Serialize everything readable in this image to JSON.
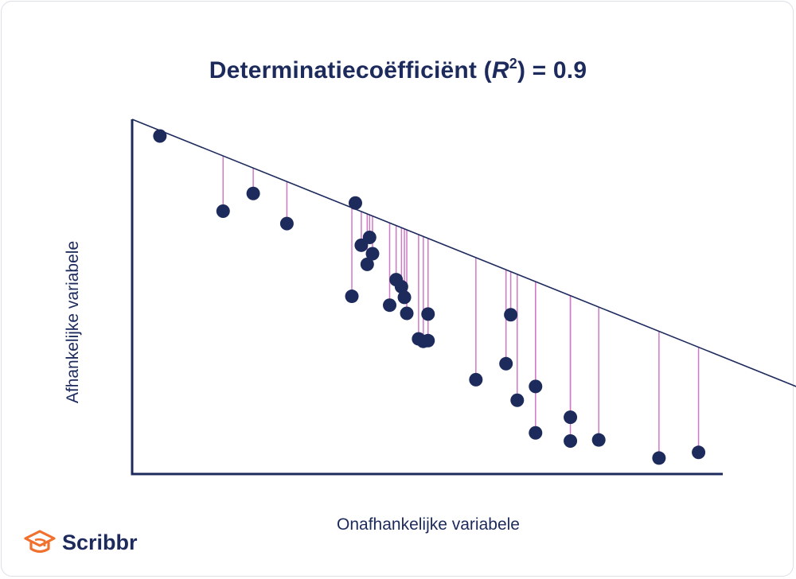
{
  "chart_data": {
    "type": "scatter",
    "title": "Determinatiecoëfficiënt (R²) = 0.9",
    "title_parts": {
      "pre": "Determinatiecoëfficiënt (",
      "r": "R",
      "sup": "2",
      "post": ") = 0.9"
    },
    "xlabel": "Onafhankelijke variabele",
    "ylabel": "Afhankelijke variabele",
    "ticks": false,
    "grid": false,
    "regression_line": {
      "slope": -0.67,
      "intercept": 100
    },
    "show_residuals": true,
    "xlim": [
      0,
      100
    ],
    "ylim": [
      0,
      100
    ],
    "points": [
      {
        "x": 4.7,
        "y": 95.3
      },
      {
        "x": 15.4,
        "y": 74.1
      },
      {
        "x": 20.5,
        "y": 79.1
      },
      {
        "x": 26.2,
        "y": 70.6
      },
      {
        "x": 37.2,
        "y": 50.1
      },
      {
        "x": 37.8,
        "y": 76.4
      },
      {
        "x": 38.8,
        "y": 64.5
      },
      {
        "x": 39.8,
        "y": 59.1
      },
      {
        "x": 40.2,
        "y": 66.7
      },
      {
        "x": 40.7,
        "y": 62.1
      },
      {
        "x": 43.6,
        "y": 47.6
      },
      {
        "x": 44.7,
        "y": 54.8
      },
      {
        "x": 45.6,
        "y": 52.8
      },
      {
        "x": 46.1,
        "y": 49.8
      },
      {
        "x": 46.5,
        "y": 45.3
      },
      {
        "x": 48.5,
        "y": 38.1
      },
      {
        "x": 49.3,
        "y": 37.4
      },
      {
        "x": 50.1,
        "y": 37.6
      },
      {
        "x": 50.1,
        "y": 45.1
      },
      {
        "x": 58.2,
        "y": 26.6
      },
      {
        "x": 63.3,
        "y": 31.1
      },
      {
        "x": 64.1,
        "y": 44.9
      },
      {
        "x": 65.2,
        "y": 20.8
      },
      {
        "x": 68.3,
        "y": 24.7
      },
      {
        "x": 68.3,
        "y": 11.6
      },
      {
        "x": 74.2,
        "y": 16.0
      },
      {
        "x": 74.2,
        "y": 9.3
      },
      {
        "x": 79.0,
        "y": 9.6
      },
      {
        "x": 89.2,
        "y": 4.5
      },
      {
        "x": 95.9,
        "y": 6.1
      }
    ],
    "colors": {
      "point": "#1d2a5c",
      "line": "#1d2a5c",
      "residual": "#d179c7",
      "axis": "#1d2a5c"
    }
  },
  "logo": {
    "text": "Scribbr",
    "icon": "graduation-cap-icon",
    "color": "#f0702e"
  }
}
